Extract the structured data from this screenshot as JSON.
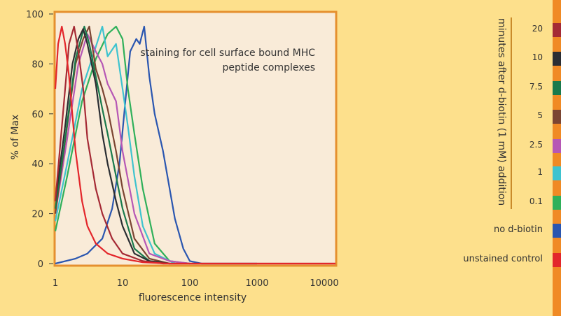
{
  "chart_data": {
    "type": "line",
    "annotation": [
      "staining for cell surface bound MHC",
      "peptide complexes"
    ],
    "xlabel": "fluorescence intensity",
    "ylabel": "% of Max",
    "xscale": "log",
    "xlim": [
      1,
      16000
    ],
    "ylim": [
      0,
      100
    ],
    "xticks": [
      1,
      10,
      100,
      1000,
      10000
    ],
    "xtick_labels": [
      "1",
      "10",
      "100",
      "1000",
      "10000"
    ],
    "yticks": [
      0,
      20,
      40,
      60,
      80,
      100
    ],
    "ytick_labels": [
      "0",
      "20",
      "40",
      "60",
      "80",
      "100"
    ],
    "legend_title": "minutes after d-biotin (1 mM) addition",
    "legend_placement": "right",
    "series": [
      {
        "name": "unstained control",
        "color": "#e3262b",
        "points": [
          [
            1,
            70
          ],
          [
            1.1,
            88
          ],
          [
            1.25,
            95
          ],
          [
            1.4,
            88
          ],
          [
            1.6,
            75
          ],
          [
            2,
            45
          ],
          [
            2.5,
            25
          ],
          [
            3,
            15
          ],
          [
            4,
            8
          ],
          [
            6,
            4
          ],
          [
            10,
            2
          ],
          [
            20,
            0.5
          ],
          [
            50,
            0
          ],
          [
            16000,
            0
          ]
        ]
      },
      {
        "name": "20",
        "color": "#a52a35",
        "points": [
          [
            1,
            25
          ],
          [
            1.3,
            60
          ],
          [
            1.6,
            88
          ],
          [
            1.9,
            95
          ],
          [
            2.2,
            85
          ],
          [
            2.6,
            70
          ],
          [
            3,
            50
          ],
          [
            4,
            30
          ],
          [
            5,
            20
          ],
          [
            7,
            10
          ],
          [
            10,
            4
          ],
          [
            20,
            1
          ],
          [
            40,
            0
          ],
          [
            16000,
            0
          ]
        ]
      },
      {
        "name": "10",
        "color": "#2b2e33",
        "points": [
          [
            1,
            25
          ],
          [
            1.4,
            55
          ],
          [
            1.8,
            80
          ],
          [
            2.2,
            90
          ],
          [
            2.6,
            94
          ],
          [
            3,
            88
          ],
          [
            4,
            72
          ],
          [
            5,
            52
          ],
          [
            6,
            40
          ],
          [
            8,
            25
          ],
          [
            10,
            15
          ],
          [
            15,
            4
          ],
          [
            25,
            1
          ],
          [
            50,
            0
          ]
        ]
      },
      {
        "name": "7.5",
        "color": "#197a4c",
        "points": [
          [
            1,
            22
          ],
          [
            1.4,
            50
          ],
          [
            2,
            82
          ],
          [
            2.7,
            95
          ],
          [
            3.2,
            88
          ],
          [
            4,
            75
          ],
          [
            5,
            62
          ],
          [
            6,
            52
          ],
          [
            8,
            35
          ],
          [
            10,
            22
          ],
          [
            15,
            6
          ],
          [
            25,
            1
          ],
          [
            50,
            0
          ]
        ]
      },
      {
        "name": "5",
        "color": "#7b4532",
        "points": [
          [
            1,
            20
          ],
          [
            1.5,
            55
          ],
          [
            2,
            80
          ],
          [
            2.6,
            90
          ],
          [
            3.2,
            95
          ],
          [
            4,
            78
          ],
          [
            5,
            70
          ],
          [
            6,
            62
          ],
          [
            8,
            45
          ],
          [
            10,
            30
          ],
          [
            15,
            10
          ],
          [
            25,
            2
          ],
          [
            50,
            0
          ]
        ]
      },
      {
        "name": "2.5",
        "color": "#b657b5",
        "points": [
          [
            1,
            20
          ],
          [
            1.5,
            50
          ],
          [
            2.2,
            80
          ],
          [
            3,
            92
          ],
          [
            4,
            85
          ],
          [
            5,
            80
          ],
          [
            6,
            72
          ],
          [
            8,
            65
          ],
          [
            10,
            45
          ],
          [
            15,
            20
          ],
          [
            25,
            4
          ],
          [
            50,
            1
          ],
          [
            100,
            0
          ]
        ]
      },
      {
        "name": "1",
        "color": "#3ec3cf",
        "points": [
          [
            1,
            17
          ],
          [
            1.5,
            40
          ],
          [
            2.5,
            70
          ],
          [
            3.5,
            82
          ],
          [
            5,
            95
          ],
          [
            6,
            83
          ],
          [
            8,
            88
          ],
          [
            10,
            70
          ],
          [
            12,
            55
          ],
          [
            15,
            35
          ],
          [
            20,
            15
          ],
          [
            30,
            4
          ],
          [
            60,
            0
          ]
        ]
      },
      {
        "name": "0.1",
        "color": "#2fb05a",
        "points": [
          [
            1,
            13
          ],
          [
            1.5,
            35
          ],
          [
            2.5,
            65
          ],
          [
            4,
            82
          ],
          [
            6,
            92
          ],
          [
            8,
            95
          ],
          [
            10,
            90
          ],
          [
            12,
            70
          ],
          [
            15,
            52
          ],
          [
            20,
            30
          ],
          [
            30,
            8
          ],
          [
            50,
            1
          ],
          [
            100,
            0
          ]
        ]
      },
      {
        "name": "no d-biotin",
        "color": "#2a56b0",
        "points": [
          [
            1,
            0
          ],
          [
            2,
            2
          ],
          [
            3,
            4
          ],
          [
            5,
            10
          ],
          [
            7,
            22
          ],
          [
            9,
            40
          ],
          [
            11,
            65
          ],
          [
            13,
            85
          ],
          [
            16,
            90
          ],
          [
            18,
            88
          ],
          [
            21,
            95
          ],
          [
            25,
            75
          ],
          [
            30,
            60
          ],
          [
            40,
            45
          ],
          [
            60,
            18
          ],
          [
            80,
            6
          ],
          [
            100,
            1
          ],
          [
            150,
            0
          ],
          [
            1000,
            0
          ]
        ]
      }
    ],
    "legend_labels": [
      "20",
      "10",
      "7.5",
      "5",
      "2.5",
      "1",
      "0.1",
      "no d-biotin",
      "unstained control"
    ],
    "legend_colors": [
      "#a52a35",
      "#2b2e33",
      "#197a4c",
      "#7b4532",
      "#b657b5",
      "#3ec3cf",
      "#2fb05a",
      "#2a56b0",
      "#e3262b"
    ]
  }
}
